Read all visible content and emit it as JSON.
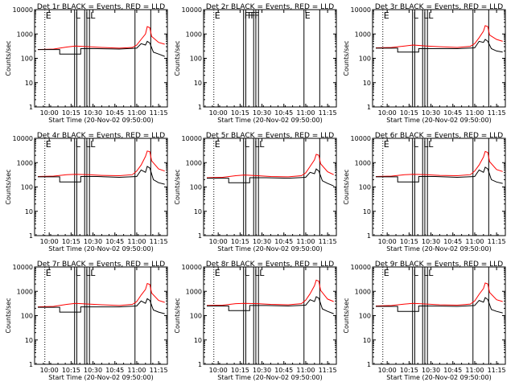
{
  "chart_data": {
    "type": "line",
    "time_axis": {
      "tick_labels": [
        "10:00",
        "10:15",
        "10:30",
        "10:45",
        "11:00",
        "11:15"
      ],
      "xlabel": "Start Time (20-Nov-02 09:50:00)"
    },
    "y_axis": {
      "label": "Counts/sec",
      "scale": "log",
      "ylim": [
        1,
        10000
      ],
      "tick_labels": [
        "1",
        "10",
        "100",
        "1000",
        "10000"
      ]
    },
    "series_colors": {
      "events": "#000000",
      "lld": "#ff0000"
    },
    "panels": [
      {
        "title": "Det 1r BLACK = Events, RED = LLD",
        "events": [
          [
            9.87,
            230
          ],
          [
            10.12,
            230
          ],
          [
            10.12,
            150
          ],
          [
            10.36,
            150
          ],
          [
            10.36,
            250
          ],
          [
            10.55,
            250
          ],
          [
            10.8,
            240
          ],
          [
            11.0,
            260
          ],
          [
            11.05,
            400
          ],
          [
            11.1,
            350
          ],
          [
            11.12,
            500
          ],
          [
            11.15,
            420
          ],
          [
            11.19,
            180
          ],
          [
            11.25,
            150
          ],
          [
            11.32,
            120
          ]
        ],
        "lld": [
          [
            9.87,
            230
          ],
          [
            10.05,
            240
          ],
          [
            10.2,
            290
          ],
          [
            10.3,
            320
          ],
          [
            10.45,
            300
          ],
          [
            10.6,
            280
          ],
          [
            10.8,
            260
          ],
          [
            10.95,
            280
          ],
          [
            11.0,
            350
          ],
          [
            11.05,
            600
          ],
          [
            11.1,
            1000
          ],
          [
            11.12,
            2000
          ],
          [
            11.15,
            1800
          ],
          [
            11.17,
            800
          ],
          [
            11.25,
            450
          ],
          [
            11.32,
            380
          ]
        ],
        "markers": [
          "E",
          "L",
          "L",
          "L"
        ]
      },
      {
        "title": "Det 2r BLACK = Events, RED = LLD",
        "events": [],
        "lld": [],
        "markers": [
          "E",
          "F",
          "F",
          "F",
          "F",
          "E"
        ]
      },
      {
        "title": "Det 3r BLACK = Events, RED = LLD",
        "events": [
          [
            9.87,
            260
          ],
          [
            10.12,
            260
          ],
          [
            10.12,
            180
          ],
          [
            10.36,
            180
          ],
          [
            10.36,
            250
          ],
          [
            10.55,
            250
          ],
          [
            10.8,
            250
          ],
          [
            11.0,
            270
          ],
          [
            11.05,
            500
          ],
          [
            11.1,
            450
          ],
          [
            11.12,
            600
          ],
          [
            11.15,
            500
          ],
          [
            11.19,
            250
          ],
          [
            11.25,
            200
          ],
          [
            11.32,
            180
          ]
        ],
        "lld": [
          [
            9.87,
            270
          ],
          [
            10.05,
            280
          ],
          [
            10.2,
            320
          ],
          [
            10.3,
            350
          ],
          [
            10.45,
            320
          ],
          [
            10.6,
            300
          ],
          [
            10.8,
            280
          ],
          [
            10.95,
            310
          ],
          [
            11.0,
            400
          ],
          [
            11.05,
            700
          ],
          [
            11.1,
            1300
          ],
          [
            11.12,
            2200
          ],
          [
            11.15,
            2000
          ],
          [
            11.17,
            900
          ],
          [
            11.25,
            600
          ],
          [
            11.32,
            500
          ]
        ],
        "markers": [
          "E",
          "L",
          "L",
          "L"
        ]
      },
      {
        "title": "Det 4r BLACK = Events, RED = LLD",
        "events": [
          [
            9.87,
            260
          ],
          [
            10.12,
            260
          ],
          [
            10.12,
            160
          ],
          [
            10.36,
            160
          ],
          [
            10.36,
            270
          ],
          [
            10.55,
            270
          ],
          [
            10.8,
            250
          ],
          [
            11.0,
            270
          ],
          [
            11.05,
            500
          ],
          [
            11.1,
            400
          ],
          [
            11.12,
            700
          ],
          [
            11.15,
            600
          ],
          [
            11.19,
            200
          ],
          [
            11.25,
            150
          ],
          [
            11.32,
            130
          ]
        ],
        "lld": [
          [
            9.87,
            270
          ],
          [
            10.05,
            280
          ],
          [
            10.2,
            320
          ],
          [
            10.3,
            330
          ],
          [
            10.45,
            320
          ],
          [
            10.6,
            300
          ],
          [
            10.8,
            290
          ],
          [
            10.95,
            320
          ],
          [
            11.0,
            450
          ],
          [
            11.05,
            800
          ],
          [
            11.1,
            1800
          ],
          [
            11.12,
            3000
          ],
          [
            11.15,
            2800
          ],
          [
            11.17,
            1200
          ],
          [
            11.25,
            550
          ],
          [
            11.32,
            450
          ]
        ],
        "markers": [
          "E",
          "L",
          "L",
          "L"
        ]
      },
      {
        "title": "Det 5r BLACK = Events, RED = LLD",
        "events": [
          [
            9.87,
            230
          ],
          [
            10.12,
            230
          ],
          [
            10.12,
            150
          ],
          [
            10.36,
            150
          ],
          [
            10.36,
            240
          ],
          [
            10.55,
            240
          ],
          [
            10.8,
            230
          ],
          [
            11.0,
            250
          ],
          [
            11.05,
            400
          ],
          [
            11.1,
            350
          ],
          [
            11.12,
            550
          ],
          [
            11.15,
            450
          ],
          [
            11.19,
            180
          ],
          [
            11.25,
            140
          ],
          [
            11.32,
            110
          ]
        ],
        "lld": [
          [
            9.87,
            240
          ],
          [
            10.05,
            250
          ],
          [
            10.2,
            290
          ],
          [
            10.3,
            310
          ],
          [
            10.45,
            290
          ],
          [
            10.6,
            270
          ],
          [
            10.8,
            260
          ],
          [
            10.95,
            290
          ],
          [
            11.0,
            380
          ],
          [
            11.05,
            700
          ],
          [
            11.1,
            1300
          ],
          [
            11.12,
            2200
          ],
          [
            11.15,
            2000
          ],
          [
            11.17,
            900
          ],
          [
            11.25,
            420
          ],
          [
            11.32,
            320
          ]
        ],
        "markers": [
          "E",
          "L",
          "L",
          "L"
        ]
      },
      {
        "title": "Det 6r BLACK = Events, RED = LLD",
        "events": [
          [
            9.87,
            260
          ],
          [
            10.12,
            260
          ],
          [
            10.12,
            160
          ],
          [
            10.36,
            160
          ],
          [
            10.36,
            270
          ],
          [
            10.55,
            270
          ],
          [
            10.8,
            250
          ],
          [
            11.0,
            270
          ],
          [
            11.05,
            500
          ],
          [
            11.1,
            400
          ],
          [
            11.12,
            650
          ],
          [
            11.15,
            550
          ],
          [
            11.19,
            200
          ],
          [
            11.25,
            160
          ],
          [
            11.32,
            140
          ]
        ],
        "lld": [
          [
            9.87,
            270
          ],
          [
            10.05,
            280
          ],
          [
            10.2,
            320
          ],
          [
            10.3,
            330
          ],
          [
            10.45,
            320
          ],
          [
            10.6,
            300
          ],
          [
            10.8,
            290
          ],
          [
            10.95,
            320
          ],
          [
            11.0,
            450
          ],
          [
            11.05,
            800
          ],
          [
            11.1,
            1700
          ],
          [
            11.12,
            2900
          ],
          [
            11.15,
            2600
          ],
          [
            11.17,
            1100
          ],
          [
            11.25,
            520
          ],
          [
            11.32,
            430
          ]
        ],
        "markers": [
          "E",
          "L",
          "L",
          "L"
        ]
      },
      {
        "title": "Det 7r BLACK = Events, RED = LLD",
        "events": [
          [
            9.87,
            220
          ],
          [
            10.12,
            220
          ],
          [
            10.12,
            140
          ],
          [
            10.36,
            140
          ],
          [
            10.36,
            230
          ],
          [
            10.55,
            230
          ],
          [
            10.8,
            230
          ],
          [
            11.0,
            250
          ],
          [
            11.05,
            400
          ],
          [
            11.1,
            320
          ],
          [
            11.12,
            500
          ],
          [
            11.15,
            420
          ],
          [
            11.19,
            170
          ],
          [
            11.25,
            140
          ],
          [
            11.32,
            120
          ]
        ],
        "lld": [
          [
            9.87,
            230
          ],
          [
            10.05,
            240
          ],
          [
            10.2,
            290
          ],
          [
            10.3,
            320
          ],
          [
            10.45,
            300
          ],
          [
            10.6,
            280
          ],
          [
            10.8,
            260
          ],
          [
            10.95,
            290
          ],
          [
            11.0,
            380
          ],
          [
            11.05,
            700
          ],
          [
            11.1,
            1200
          ],
          [
            11.12,
            2100
          ],
          [
            11.15,
            1900
          ],
          [
            11.17,
            850
          ],
          [
            11.25,
            420
          ],
          [
            11.32,
            350
          ]
        ],
        "markers": [
          "E",
          "L",
          "L",
          "L"
        ]
      },
      {
        "title": "Det 8r BLACK = Events, RED = LLD",
        "events": [
          [
            9.87,
            250
          ],
          [
            10.12,
            250
          ],
          [
            10.12,
            160
          ],
          [
            10.36,
            160
          ],
          [
            10.36,
            260
          ],
          [
            10.55,
            260
          ],
          [
            10.8,
            250
          ],
          [
            11.0,
            270
          ],
          [
            11.05,
            450
          ],
          [
            11.1,
            380
          ],
          [
            11.12,
            600
          ],
          [
            11.15,
            520
          ],
          [
            11.19,
            190
          ],
          [
            11.25,
            150
          ],
          [
            11.32,
            120
          ]
        ],
        "lld": [
          [
            9.87,
            260
          ],
          [
            10.05,
            270
          ],
          [
            10.2,
            310
          ],
          [
            10.3,
            320
          ],
          [
            10.45,
            310
          ],
          [
            10.6,
            290
          ],
          [
            10.8,
            280
          ],
          [
            10.95,
            310
          ],
          [
            11.0,
            430
          ],
          [
            11.05,
            800
          ],
          [
            11.1,
            1700
          ],
          [
            11.12,
            2900
          ],
          [
            11.15,
            2600
          ],
          [
            11.17,
            1100
          ],
          [
            11.25,
            480
          ],
          [
            11.32,
            380
          ]
        ],
        "markers": [
          "E",
          "L",
          "L",
          "L"
        ]
      },
      {
        "title": "Det 9r BLACK = Events, RED = LLD",
        "events": [
          [
            9.87,
            240
          ],
          [
            10.12,
            240
          ],
          [
            10.12,
            150
          ],
          [
            10.36,
            150
          ],
          [
            10.36,
            250
          ],
          [
            10.55,
            250
          ],
          [
            10.8,
            240
          ],
          [
            11.0,
            260
          ],
          [
            11.05,
            420
          ],
          [
            11.1,
            360
          ],
          [
            11.12,
            550
          ],
          [
            11.15,
            460
          ],
          [
            11.19,
            180
          ],
          [
            11.25,
            150
          ],
          [
            11.32,
            130
          ]
        ],
        "lld": [
          [
            9.87,
            250
          ],
          [
            10.05,
            260
          ],
          [
            10.2,
            300
          ],
          [
            10.3,
            320
          ],
          [
            10.45,
            300
          ],
          [
            10.6,
            280
          ],
          [
            10.8,
            270
          ],
          [
            10.95,
            300
          ],
          [
            11.0,
            400
          ],
          [
            11.05,
            750
          ],
          [
            11.1,
            1300
          ],
          [
            11.12,
            2200
          ],
          [
            11.15,
            2000
          ],
          [
            11.17,
            900
          ],
          [
            11.25,
            450
          ],
          [
            11.32,
            380
          ]
        ],
        "markers": [
          "E",
          "L",
          "L",
          "L"
        ]
      }
    ]
  }
}
